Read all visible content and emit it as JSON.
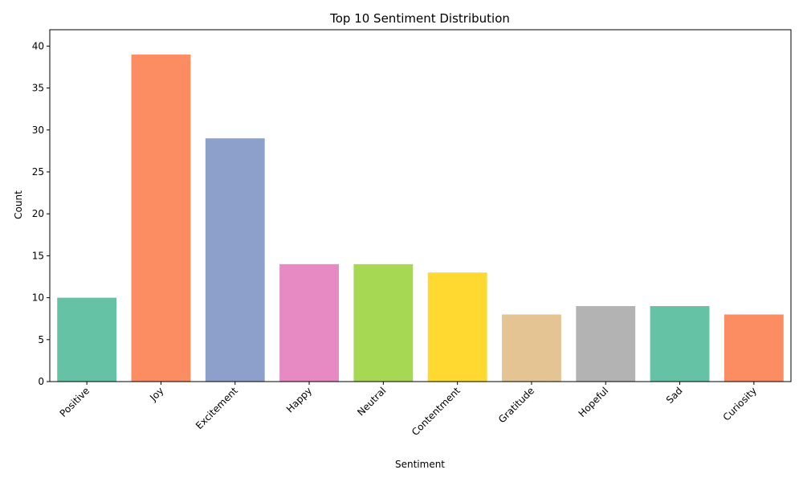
{
  "chart_data": {
    "type": "bar",
    "title": "Top 10 Sentiment Distribution",
    "xlabel": "Sentiment",
    "ylabel": "Count",
    "categories": [
      "Positive",
      "Joy",
      "Excitement",
      "Happy",
      "Neutral",
      "Contentment",
      "Gratitude",
      "Hopeful",
      "Sad",
      "Curiosity"
    ],
    "values": [
      10,
      39,
      29,
      14,
      14,
      13,
      8,
      9,
      9,
      8
    ],
    "colors": [
      "#66c2a5",
      "#fc8d62",
      "#8da0cb",
      "#e78ac3",
      "#a6d854",
      "#ffd92f",
      "#e5c494",
      "#b3b3b3",
      "#66c2a5",
      "#fc8d62"
    ],
    "ylim": [
      0,
      41.95
    ],
    "yticks": [
      0,
      5,
      10,
      15,
      20,
      25,
      30,
      35,
      40
    ],
    "xtick_rotation": 45,
    "grid": false,
    "legend": "none"
  }
}
